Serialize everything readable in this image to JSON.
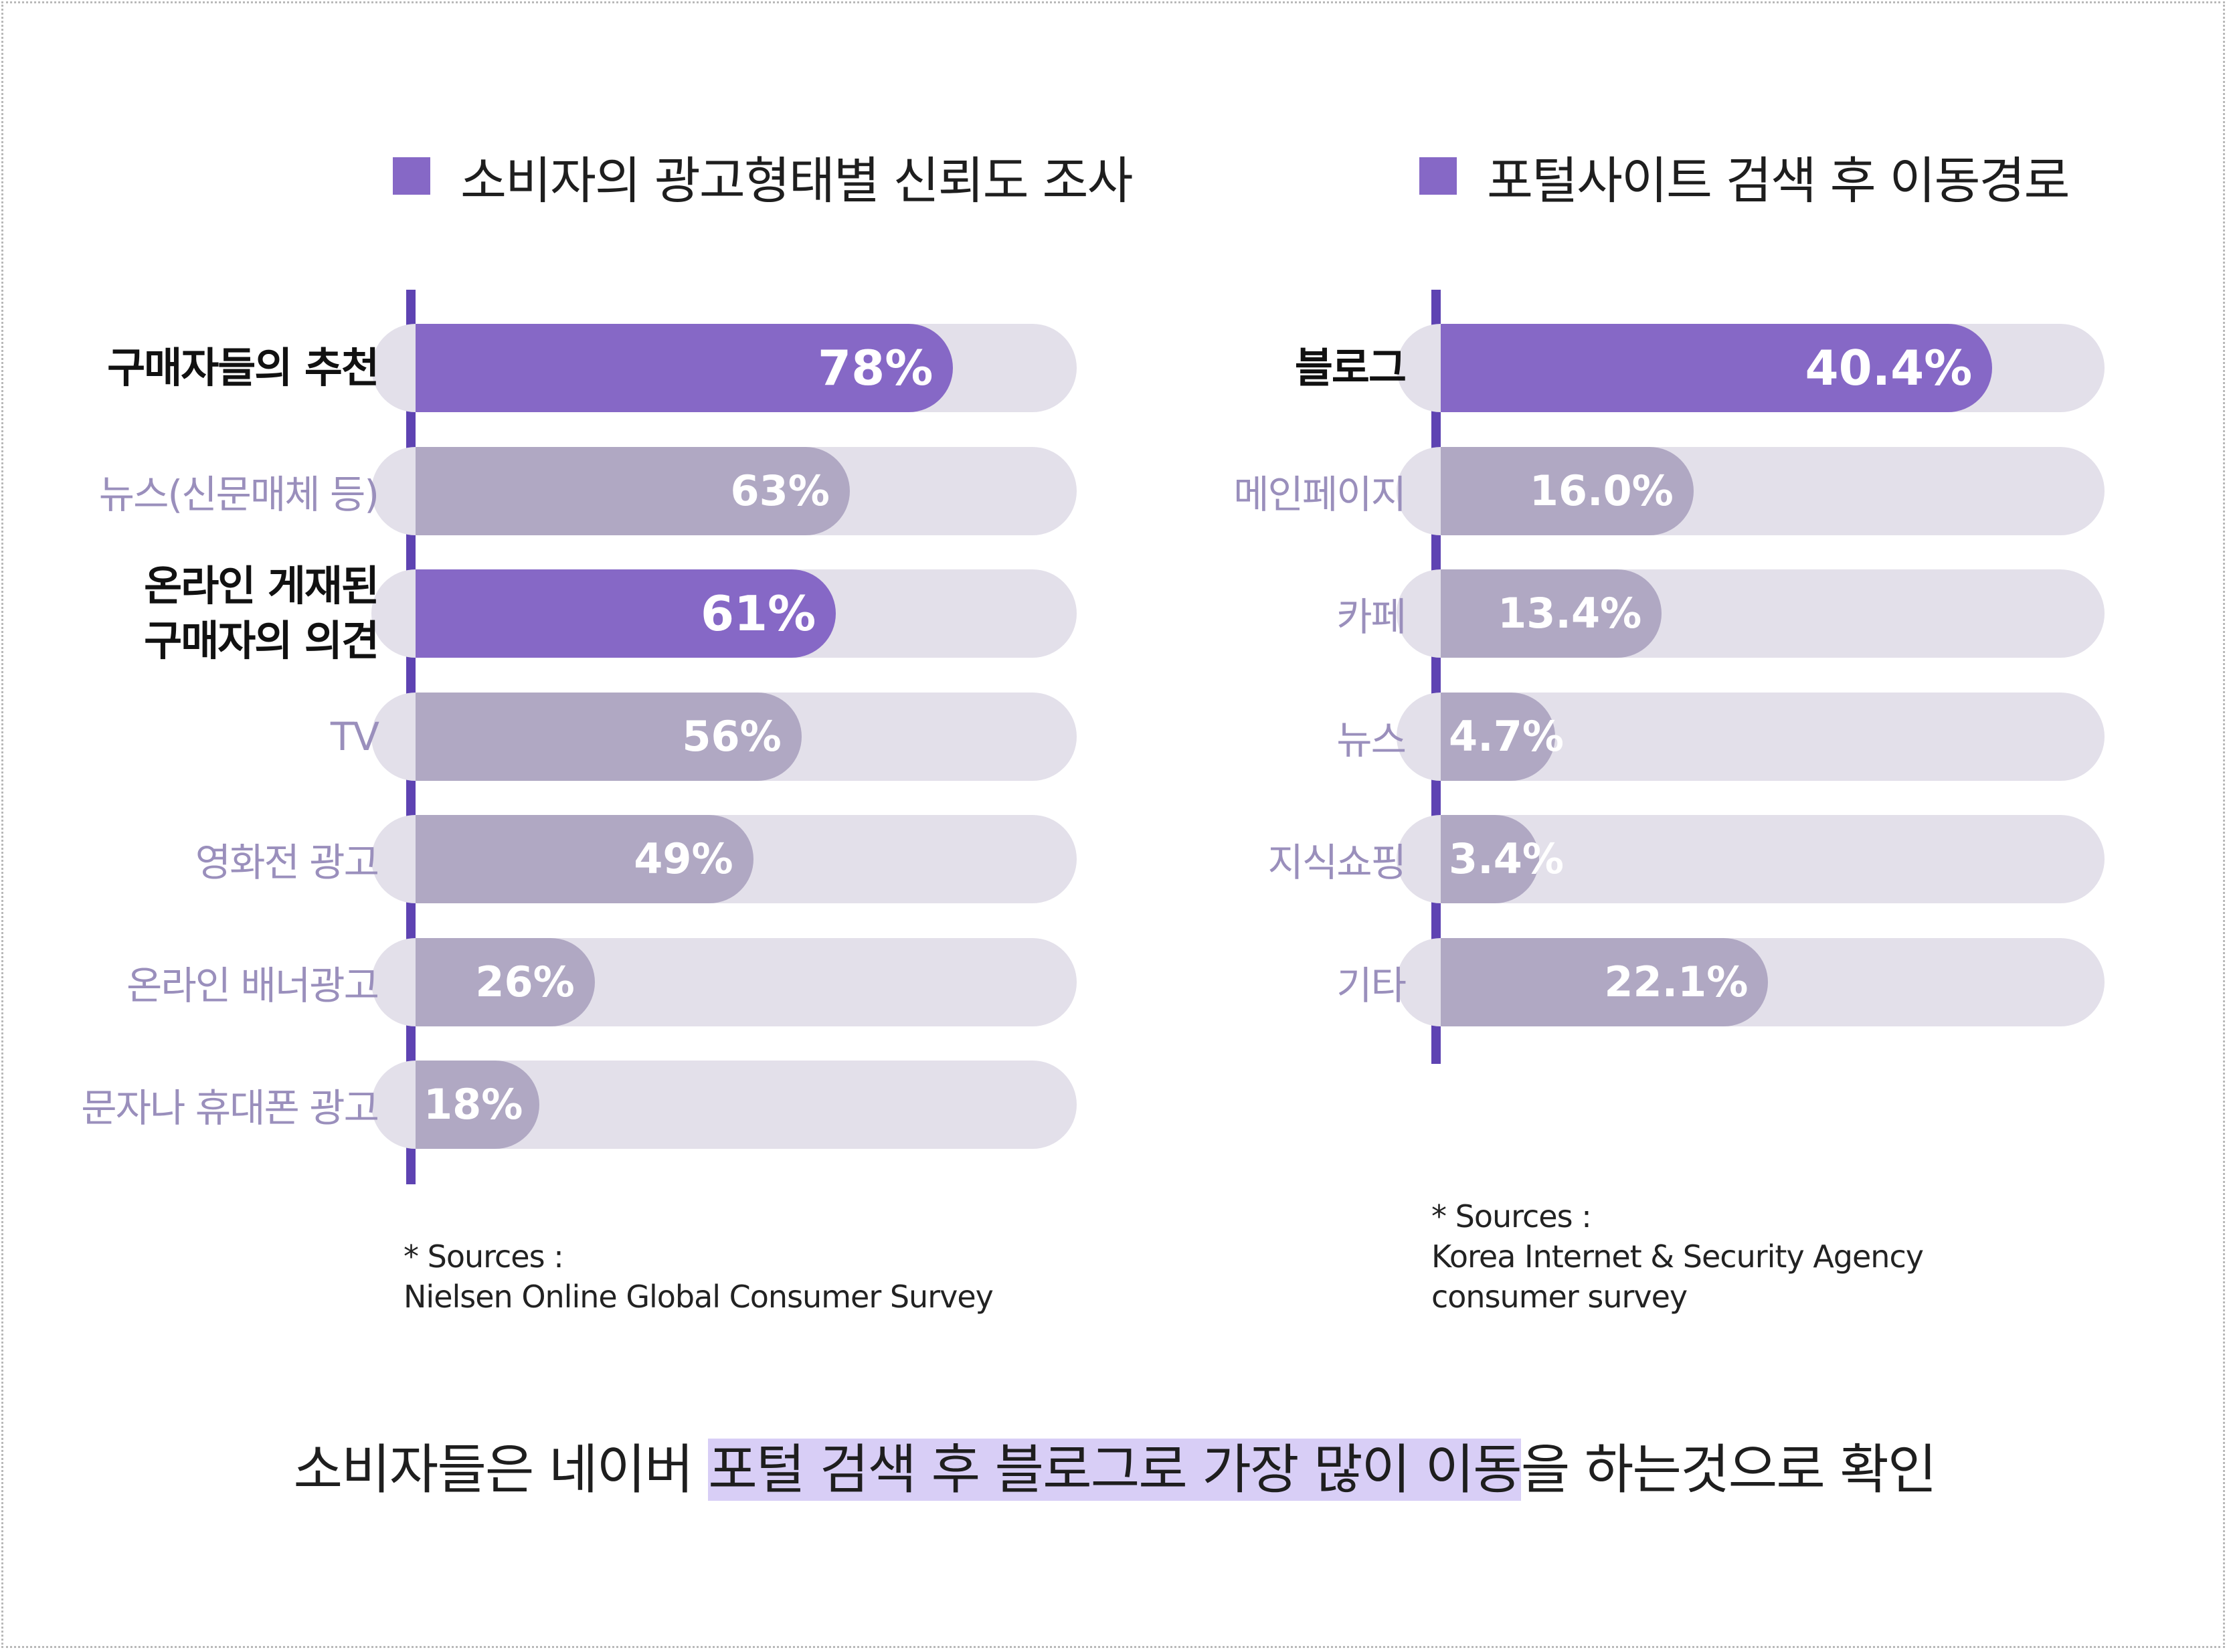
{
  "colors": {
    "highlight_bar": "#8668c6",
    "normal_bar": "#b0a8c3",
    "track": "#e3e0ea",
    "axis": "#5e43b2",
    "muted_label": "#9a8fbc",
    "emphasis_label": "#111111",
    "footer_highlight": "#d8cef6"
  },
  "chart_data": [
    {
      "type": "bar",
      "orientation": "horizontal",
      "title": "소비자의 광고형태별 신뢰도 조사",
      "categories": [
        [
          "구매자들의 추천"
        ],
        [
          "뉴스(신문매체 등)"
        ],
        [
          "온라인 게재된",
          "구매자의 의견"
        ],
        [
          "TV"
        ],
        [
          "영화전 광고"
        ],
        [
          "온라인 배너광고"
        ],
        [
          "문자나 휴대폰 광고"
        ]
      ],
      "values": [
        78,
        63,
        61,
        56,
        49,
        26,
        18
      ],
      "value_labels": [
        "78%",
        "63%",
        "61%",
        "56%",
        "49%",
        "26%",
        "18%"
      ],
      "highlighted": [
        true,
        false,
        true,
        false,
        false,
        false,
        false
      ],
      "unit": "%",
      "xlim": [
        0,
        100
      ],
      "grid": false,
      "legend": "none",
      "source_lines": [
        "* Sources :",
        "Nielsen Online Global Consumer Survey"
      ]
    },
    {
      "type": "bar",
      "orientation": "horizontal",
      "title": "포털사이트 검색 후 이동경로",
      "categories": [
        [
          "블로그"
        ],
        [
          "메인페이지"
        ],
        [
          "카페"
        ],
        [
          "뉴스"
        ],
        [
          "지식쇼핑"
        ],
        [
          "기타"
        ]
      ],
      "values": [
        40.4,
        16.0,
        13.4,
        4.7,
        3.4,
        22.1
      ],
      "value_labels": [
        "40.4%",
        "16.0%",
        "13.4%",
        "4.7%",
        "3.4%",
        "22.1%"
      ],
      "highlighted": [
        true,
        false,
        false,
        false,
        false,
        false
      ],
      "unit": "%",
      "xlim": [
        0,
        50
      ],
      "grid": false,
      "legend": "none",
      "source_lines": [
        "* Sources :",
        "Korea Internet & Security Agency",
        "consumer survey"
      ]
    }
  ],
  "footer": {
    "before": "소비자들은 네이버 ",
    "highlight": "포털 검색 후 블로그로 가장 많이 이동",
    "after": "을 하는것으로 확인"
  }
}
